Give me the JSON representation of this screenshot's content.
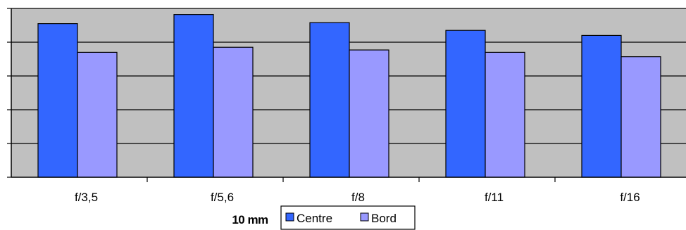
{
  "chart_data": {
    "type": "bar",
    "title": "10 mm",
    "categories": [
      "f/3,5",
      "f/5,6",
      "f/8",
      "f/11",
      "f/16"
    ],
    "series": [
      {
        "name": "Centre",
        "values": [
          4.55,
          4.82,
          4.58,
          4.35,
          4.2
        ],
        "color": "#3366ff"
      },
      {
        "name": "Bord",
        "values": [
          3.7,
          3.85,
          3.77,
          3.7,
          3.57
        ],
        "color": "#9999ff"
      }
    ],
    "ylim": [
      0,
      5
    ],
    "grid": true,
    "plot_background": "#c0c0c0",
    "legend_placement": "bottom",
    "xlabel": "",
    "ylabel": ""
  }
}
